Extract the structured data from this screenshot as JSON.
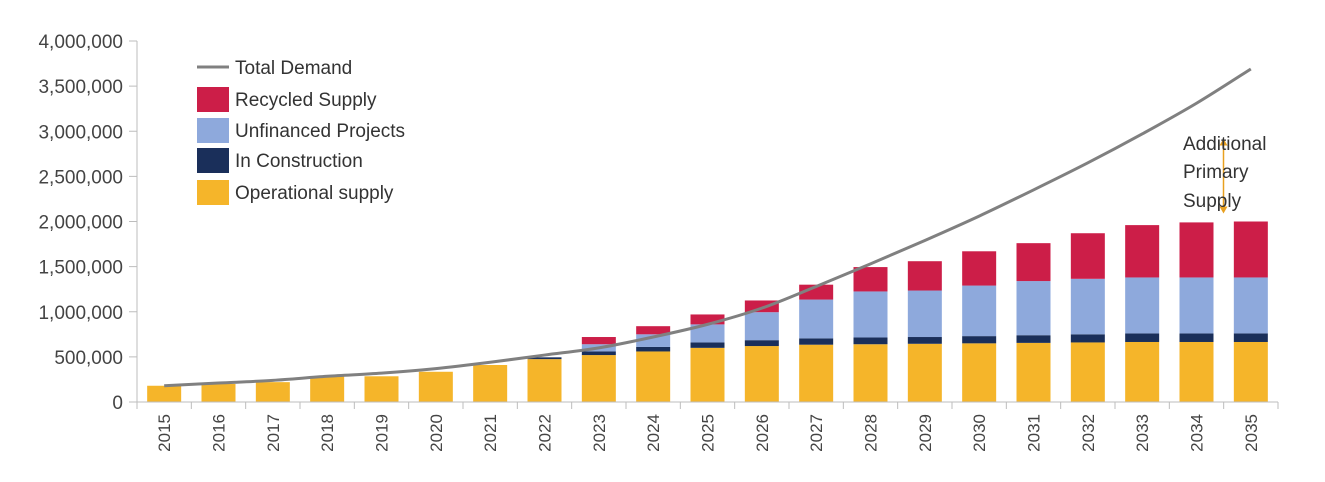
{
  "chart_data": {
    "type": "bar",
    "title": "",
    "xlabel": "",
    "ylabel": "",
    "ylim": [
      0,
      4000000
    ],
    "yticks": [
      0,
      500000,
      1000000,
      1500000,
      2000000,
      2500000,
      3000000,
      3500000,
      4000000
    ],
    "ytick_labels": [
      "0",
      "500,000",
      "1,000,000",
      "1,500,000",
      "2,000,000",
      "2,500,000",
      "3,000,000",
      "3,500,000",
      "4,000,000"
    ],
    "categories": [
      "2015",
      "2016",
      "2017",
      "2018",
      "2019",
      "2020",
      "2021",
      "2022",
      "2023",
      "2024",
      "2025",
      "2026",
      "2027",
      "2028",
      "2029",
      "2030",
      "2031",
      "2032",
      "2033",
      "2034",
      "2035"
    ],
    "stacked": true,
    "legend_position": "top-left",
    "series": [
      {
        "name": "Operational supply",
        "kind": "bar",
        "color": "#f5b52a",
        "values": [
          180000,
          200000,
          220000,
          285000,
          285000,
          335000,
          410000,
          475000,
          520000,
          560000,
          600000,
          620000,
          635000,
          640000,
          645000,
          650000,
          655000,
          660000,
          665000,
          665000,
          665000
        ]
      },
      {
        "name": "In Construction",
        "kind": "bar",
        "color": "#1a2f5a",
        "values": [
          0,
          0,
          0,
          0,
          0,
          0,
          0,
          20000,
          40000,
          50000,
          60000,
          65000,
          70000,
          75000,
          75000,
          80000,
          85000,
          90000,
          95000,
          95000,
          95000
        ]
      },
      {
        "name": "Unfinanced Projects",
        "kind": "bar",
        "color": "#8ea9dc",
        "values": [
          0,
          0,
          0,
          0,
          0,
          0,
          0,
          0,
          80000,
          140000,
          200000,
          310000,
          430000,
          510000,
          515000,
          560000,
          600000,
          615000,
          620000,
          620000,
          620000
        ]
      },
      {
        "name": "Recycled Supply",
        "kind": "bar",
        "color": "#cc1e48",
        "values": [
          0,
          0,
          0,
          0,
          0,
          0,
          0,
          0,
          80000,
          90000,
          110000,
          130000,
          165000,
          270000,
          325000,
          380000,
          420000,
          505000,
          580000,
          610000,
          620000
        ]
      },
      {
        "name": "Total Demand",
        "kind": "line",
        "color": "#808080",
        "values": [
          180000,
          210000,
          240000,
          285000,
          320000,
          370000,
          440000,
          520000,
          600000,
          720000,
          860000,
          1040000,
          1280000,
          1530000,
          1790000,
          2060000,
          2350000,
          2650000,
          2970000,
          3310000,
          3690000
        ]
      }
    ],
    "legend": [
      "Total Demand",
      "Recycled Supply",
      "Unfinanced Projects",
      "In Construction",
      "Operational supply"
    ],
    "annotation": {
      "lines": [
        "Additional",
        "Primary",
        "Supply"
      ],
      "category": "2034",
      "from": 2000000,
      "to": 2920000,
      "color": "#e8a020"
    }
  }
}
